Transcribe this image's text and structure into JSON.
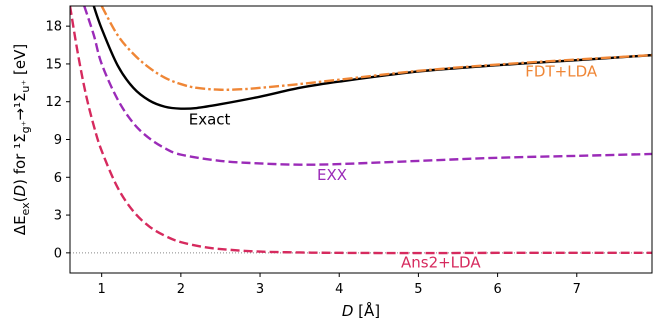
{
  "chart_data": {
    "type": "line",
    "xlabel": "D [Å]",
    "ylabel": "ΔE_ex(D) for ¹Σ_g⁺→¹Σ_u⁺ [eV]",
    "xlim": [
      0.6,
      7.95
    ],
    "ylim": [
      -1.6,
      19.6
    ],
    "xticks": [
      1,
      2,
      3,
      4,
      5,
      6,
      7
    ],
    "yticks": [
      0,
      3,
      6,
      9,
      12,
      15,
      18
    ],
    "grid": false,
    "reference_line": {
      "y": 0,
      "style": "dotted",
      "color": "#888888"
    },
    "series": [
      {
        "name": "Ans2+LDA",
        "color": "#d62a5e",
        "style": "dashed",
        "points": [
          [
            0.6,
            19.6
          ],
          [
            0.7,
            15.8
          ],
          [
            0.8,
            12.6
          ],
          [
            0.9,
            10.1
          ],
          [
            1.0,
            8.1
          ],
          [
            1.2,
            5.2
          ],
          [
            1.4,
            3.3
          ],
          [
            1.6,
            2.1
          ],
          [
            1.8,
            1.35
          ],
          [
            2.0,
            0.85
          ],
          [
            2.3,
            0.45
          ],
          [
            2.6,
            0.25
          ],
          [
            3.0,
            0.1
          ],
          [
            3.5,
            0.03
          ],
          [
            4.0,
            0.0
          ],
          [
            5.0,
            -0.02
          ],
          [
            6.0,
            0.0
          ],
          [
            7.0,
            0.0
          ],
          [
            7.95,
            0.0
          ]
        ]
      },
      {
        "name": "EXX",
        "color": "#9b2bb8",
        "style": "dashed",
        "points": [
          [
            0.78,
            19.6
          ],
          [
            0.9,
            17.3
          ],
          [
            1.0,
            15.0
          ],
          [
            1.2,
            12.2
          ],
          [
            1.4,
            10.3
          ],
          [
            1.6,
            9.1
          ],
          [
            1.8,
            8.3
          ],
          [
            2.0,
            7.8
          ],
          [
            2.5,
            7.3
          ],
          [
            3.0,
            7.1
          ],
          [
            3.5,
            7.0
          ],
          [
            4.0,
            7.05
          ],
          [
            5.0,
            7.3
          ],
          [
            6.0,
            7.55
          ],
          [
            7.0,
            7.7
          ],
          [
            7.95,
            7.85
          ]
        ]
      },
      {
        "name": "Exact",
        "color": "#000000",
        "style": "solid",
        "points": [
          [
            0.9,
            19.6
          ],
          [
            1.0,
            17.8
          ],
          [
            1.2,
            14.9
          ],
          [
            1.4,
            13.1
          ],
          [
            1.6,
            12.1
          ],
          [
            1.8,
            11.6
          ],
          [
            2.0,
            11.45
          ],
          [
            2.2,
            11.5
          ],
          [
            2.5,
            11.8
          ],
          [
            3.0,
            12.4
          ],
          [
            3.5,
            13.1
          ],
          [
            4.0,
            13.6
          ],
          [
            5.0,
            14.4
          ],
          [
            6.0,
            14.9
          ],
          [
            7.0,
            15.3
          ],
          [
            7.95,
            15.7
          ]
        ]
      },
      {
        "name": "FDT+LDA",
        "color": "#ef8636",
        "style": "dashdot",
        "points": [
          [
            1.0,
            19.6
          ],
          [
            1.2,
            17.3
          ],
          [
            1.4,
            15.8
          ],
          [
            1.6,
            14.7
          ],
          [
            1.8,
            13.9
          ],
          [
            2.0,
            13.4
          ],
          [
            2.2,
            13.1
          ],
          [
            2.5,
            12.95
          ],
          [
            2.8,
            13.0
          ],
          [
            3.0,
            13.1
          ],
          [
            3.5,
            13.4
          ],
          [
            4.0,
            13.75
          ],
          [
            5.0,
            14.45
          ],
          [
            6.0,
            14.95
          ],
          [
            7.0,
            15.35
          ],
          [
            7.95,
            15.7
          ]
        ]
      }
    ],
    "annotations": [
      {
        "text": "Exact",
        "color": "#000000",
        "x": 2.1,
        "y": 10.2
      },
      {
        "text": "EXX",
        "color": "#9b2bb8",
        "x": 3.72,
        "y": 5.8
      },
      {
        "text": "FDT+LDA",
        "color": "#ef8636",
        "x": 6.35,
        "y": 14.0
      },
      {
        "text": "Ans2+LDA",
        "color": "#d62a5e",
        "x": 4.78,
        "y": -1.15
      }
    ]
  }
}
